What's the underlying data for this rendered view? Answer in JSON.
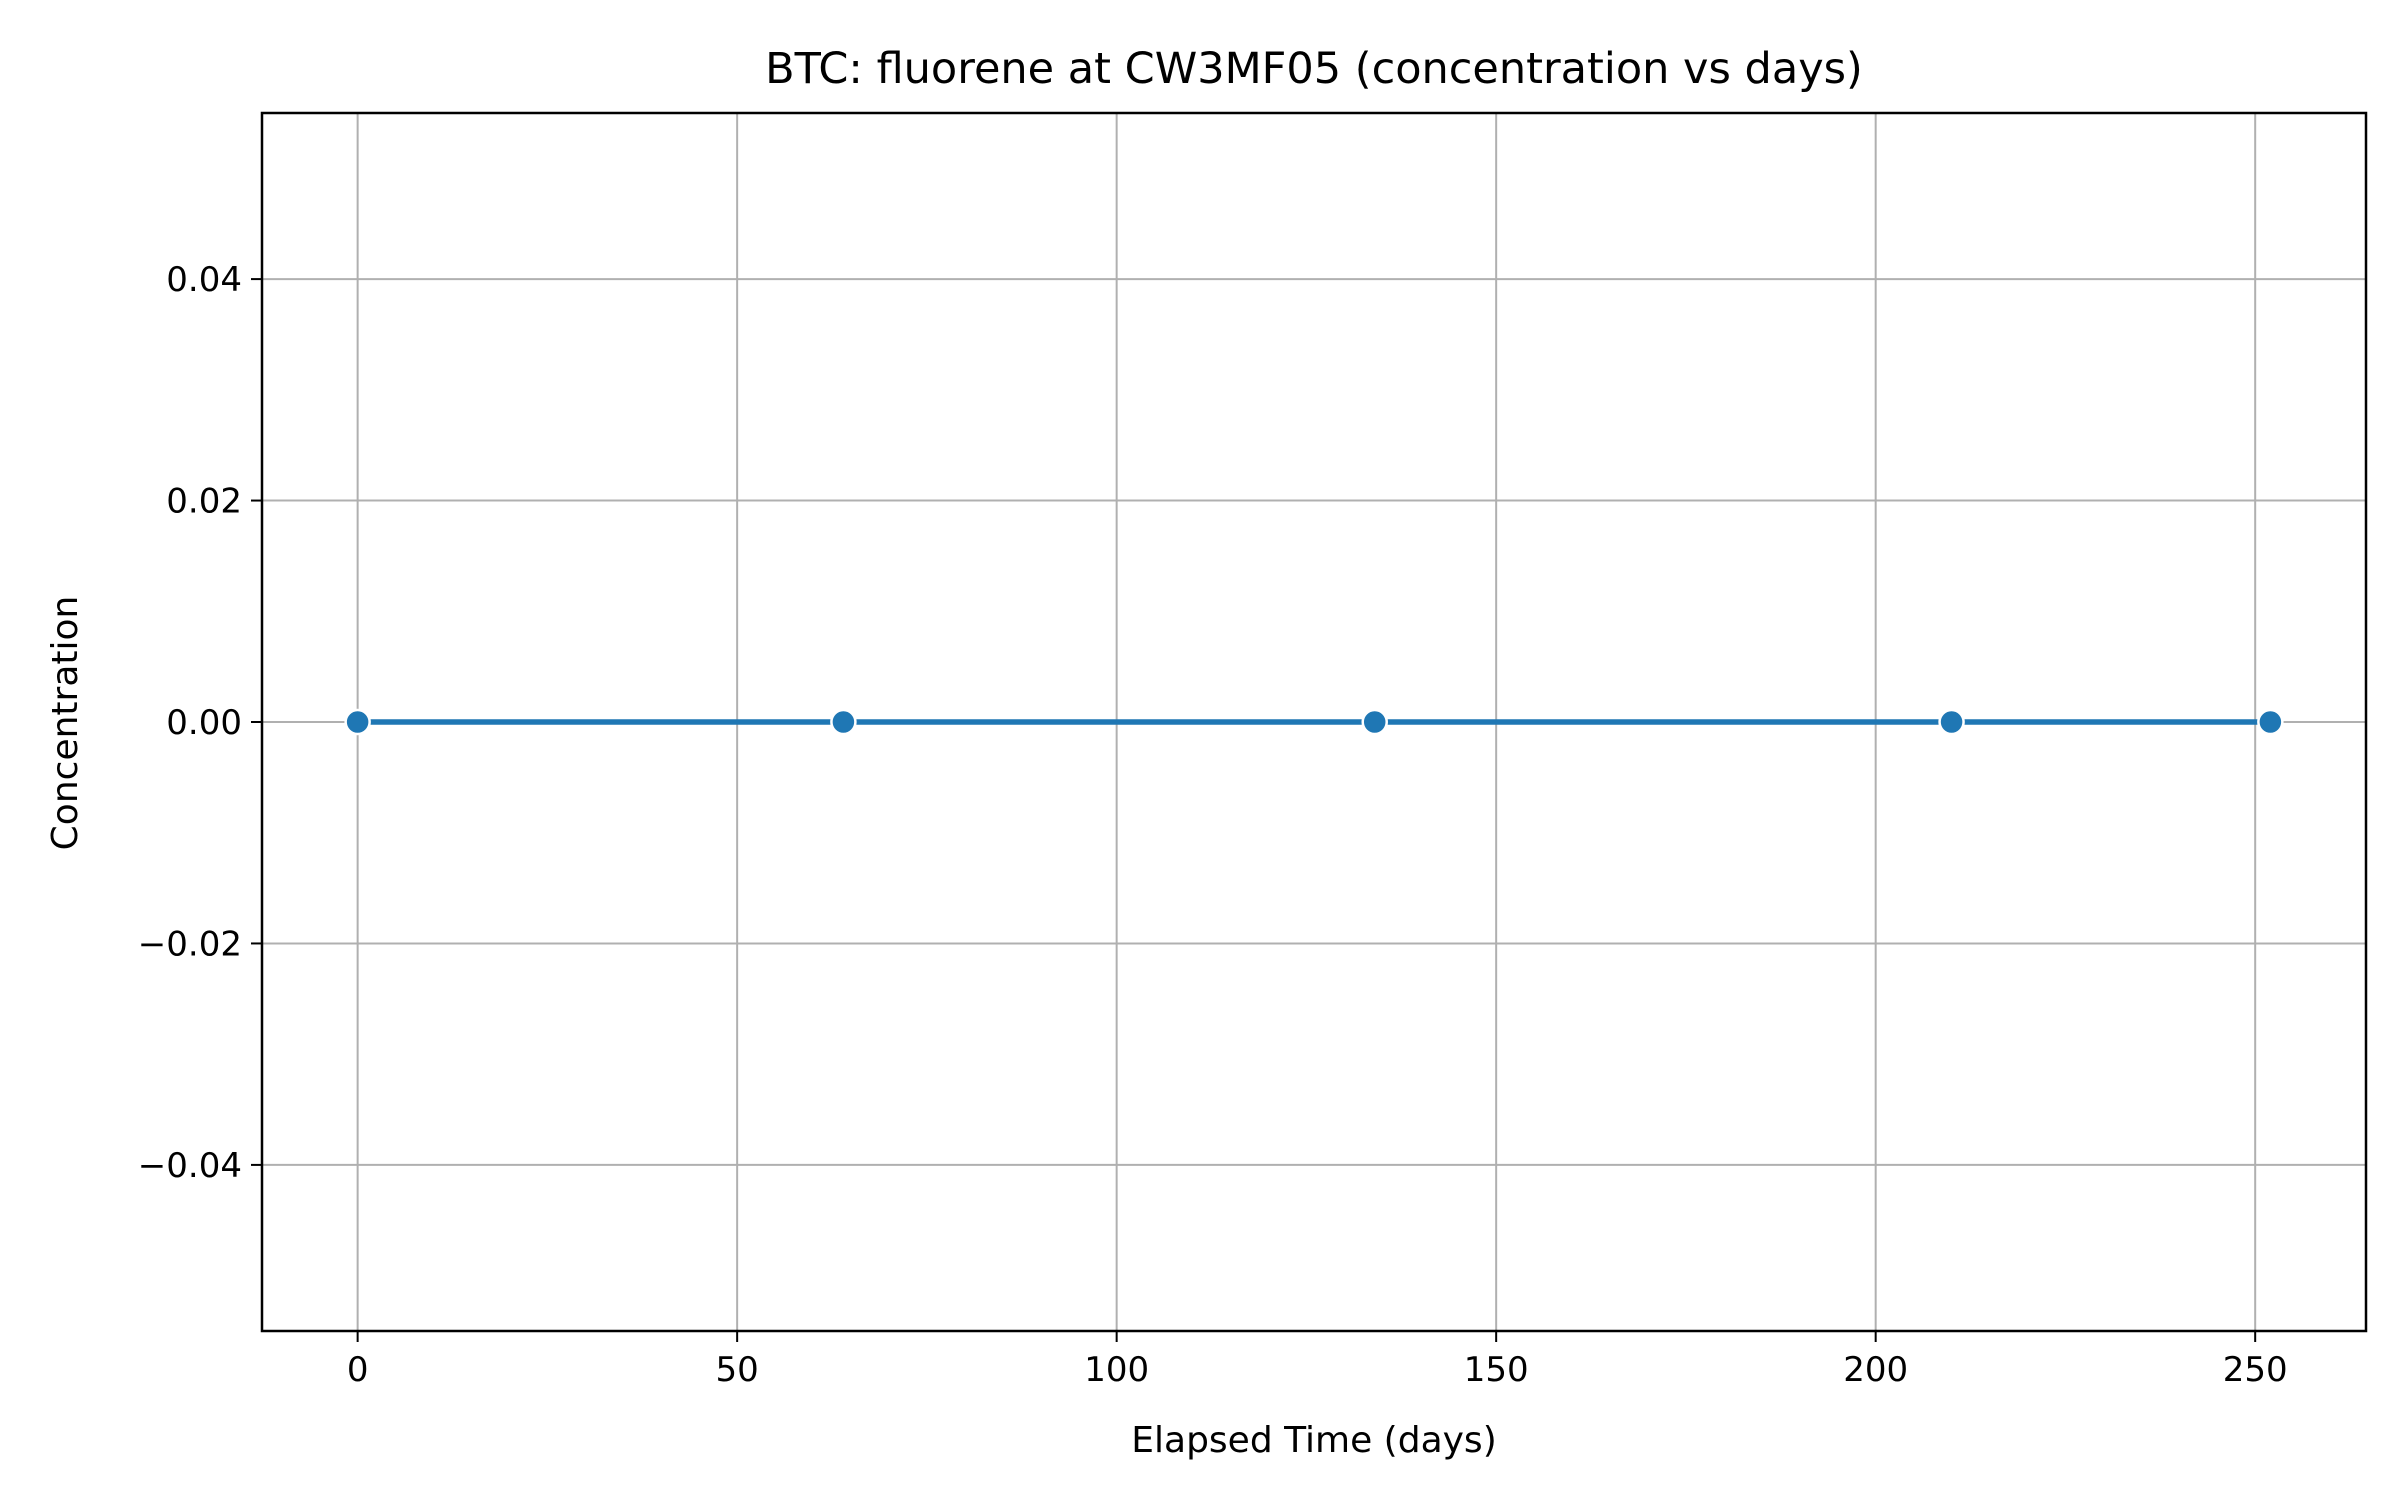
{
  "chart_data": {
    "type": "line",
    "title": "BTC: fluorene at CW3MF05 (concentration vs days)",
    "xlabel": "Elapsed Time (days)",
    "ylabel": "Concentration",
    "xlim": [
      -12.6,
      264.6
    ],
    "ylim": [
      -0.055,
      0.055
    ],
    "xticks": [
      0,
      50,
      100,
      150,
      200,
      250
    ],
    "xtick_labels": [
      "0",
      "50",
      "100",
      "150",
      "200",
      "250"
    ],
    "yticks": [
      0.04,
      0.02,
      0.0,
      -0.02,
      -0.04
    ],
    "ytick_labels": [
      "0.04",
      "0.02",
      "0.00",
      "−0.02",
      "−0.04"
    ],
    "grid": true,
    "series": [
      {
        "x": [
          0,
          64,
          134,
          210,
          252
        ],
        "y": [
          0,
          0,
          0,
          0,
          0
        ],
        "color": "#1f77b4",
        "marker": "circle"
      }
    ]
  }
}
